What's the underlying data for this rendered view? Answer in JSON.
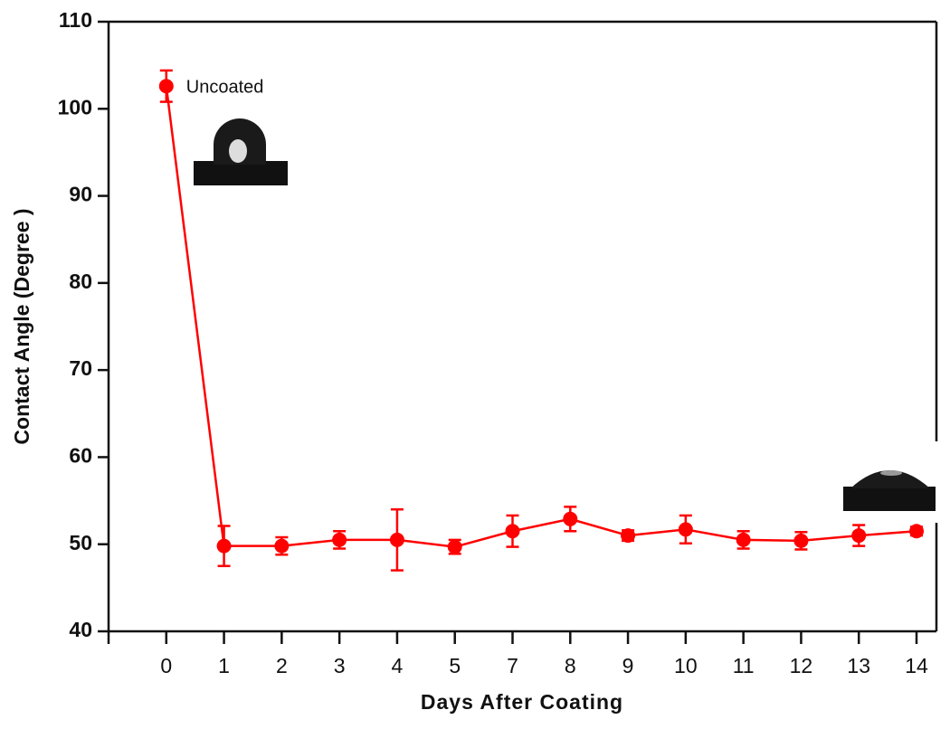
{
  "chart_data": {
    "type": "line",
    "x_label": "Days After Coating",
    "y_label": "Contact Angle (Degree )",
    "categories": [
      "0",
      "1",
      "2",
      "3",
      "4",
      "5",
      "7",
      "8",
      "9",
      "10",
      "11",
      "12",
      "13",
      "14"
    ],
    "series": [
      {
        "color": "#ff0000",
        "values": [
          102.6,
          49.8,
          49.8,
          50.5,
          50.5,
          49.7,
          51.5,
          52.9,
          51.0,
          51.7,
          50.5,
          50.4,
          51.0,
          51.5
        ],
        "errors": [
          1.8,
          2.3,
          1.0,
          1.0,
          3.5,
          0.8,
          1.8,
          1.4,
          0.6,
          1.6,
          1.0,
          1.0,
          1.2,
          0.5
        ]
      }
    ],
    "annotations": [
      "Uncoated"
    ],
    "ylim": [
      40,
      110
    ],
    "yticks": [
      40,
      50,
      60,
      70,
      80,
      90,
      100,
      110
    ]
  }
}
